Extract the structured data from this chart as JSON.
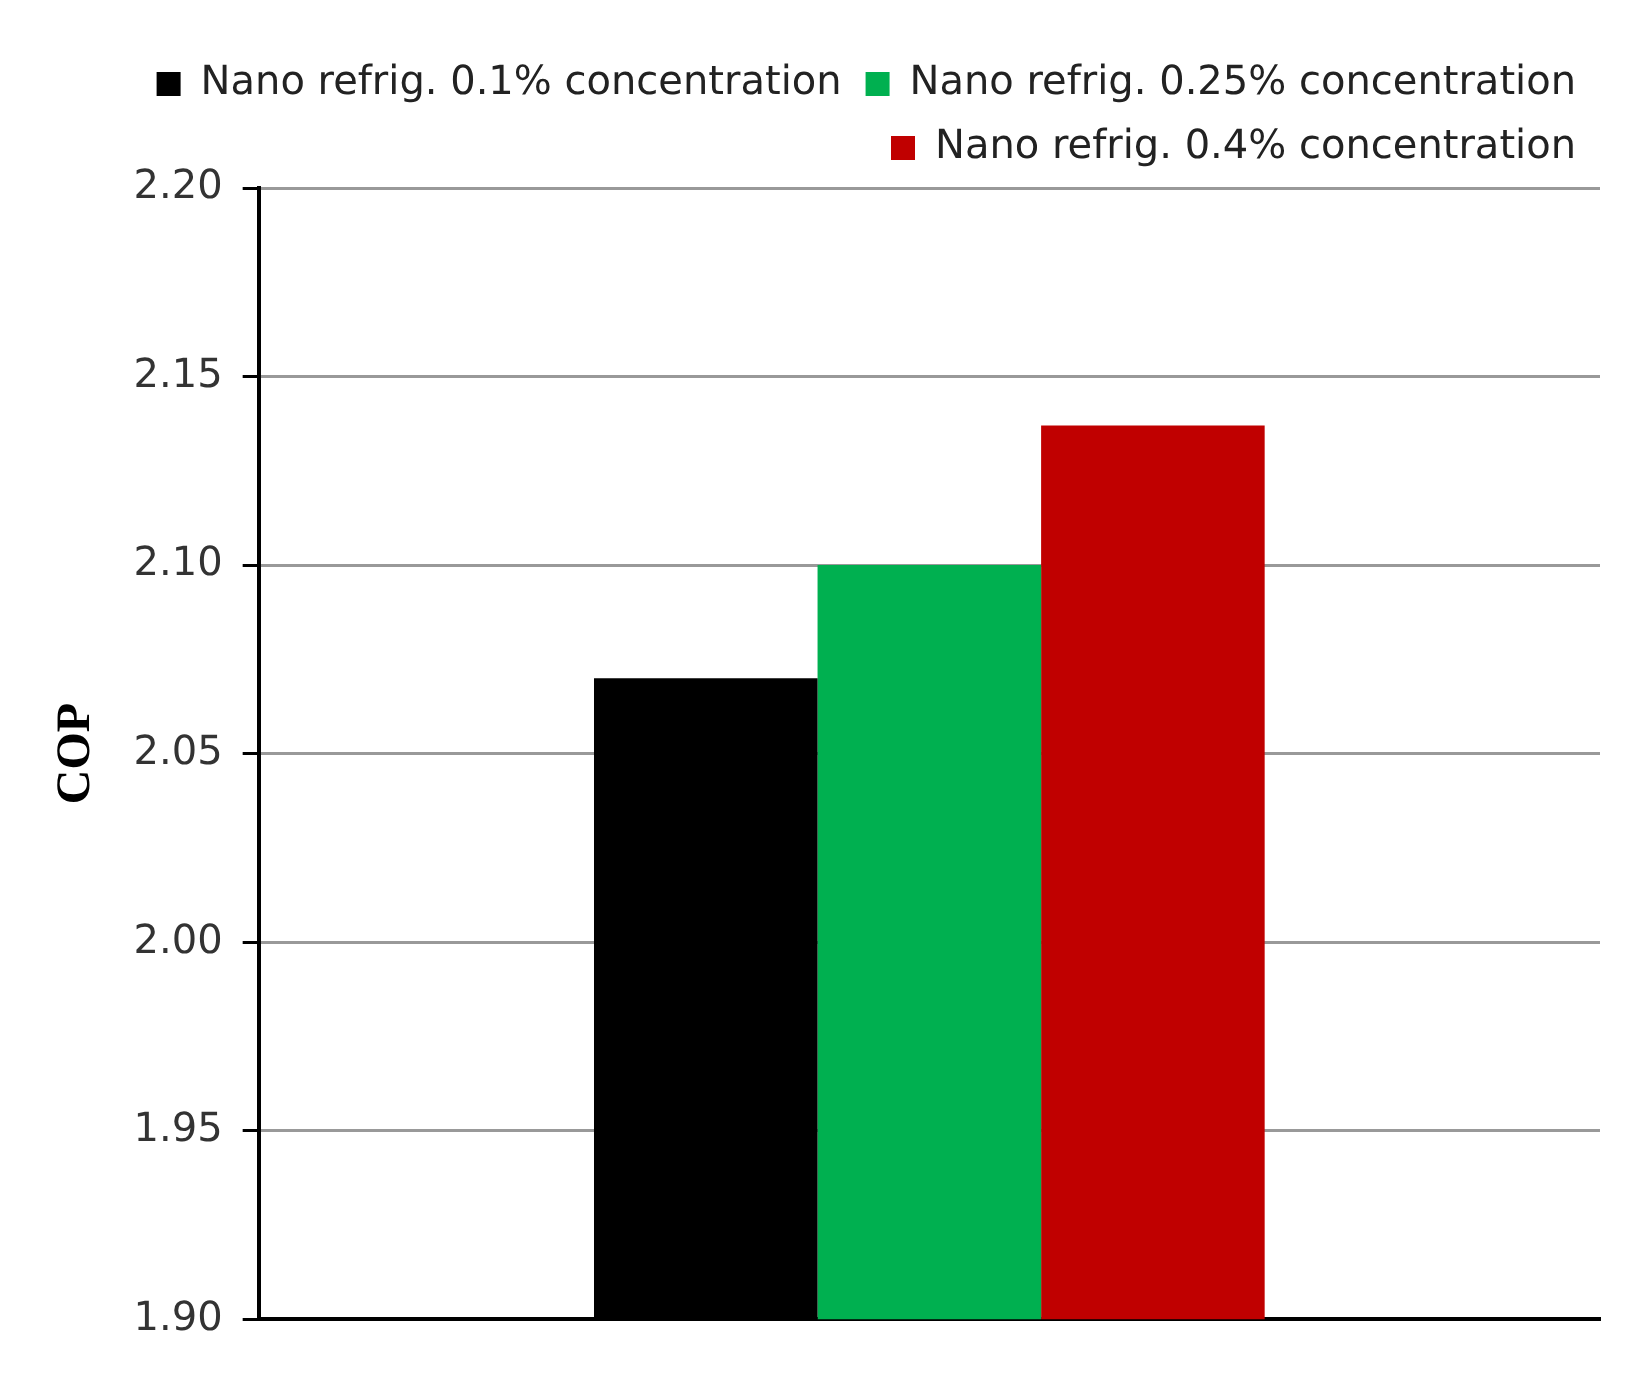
{
  "chart_data": {
    "type": "bar",
    "ylabel": "COP",
    "categories": [
      null
    ],
    "series": [
      {
        "name": "Nano refrig. 0.1% concentration",
        "color": "#000000",
        "values": [
          2.07
        ]
      },
      {
        "name": "Nano refrig. 0.25% concentration",
        "color": "#00b050",
        "values": [
          2.1
        ]
      },
      {
        "name": "Nano refrig. 0.4% concentration",
        "color": "#c00000",
        "values": [
          2.137
        ]
      }
    ],
    "ylim": [
      1.9,
      2.2
    ],
    "yticks": [
      {
        "value": 1.9,
        "label": "1.90"
      },
      {
        "value": 1.95,
        "label": "1.95"
      },
      {
        "value": 2.0,
        "label": "2.00"
      },
      {
        "value": 2.05,
        "label": "2.05"
      },
      {
        "value": 2.1,
        "label": "2.10"
      },
      {
        "value": 2.15,
        "label": "2.15"
      },
      {
        "value": 2.2,
        "label": "2.20"
      }
    ],
    "grid": "y",
    "legend": "top right"
  }
}
